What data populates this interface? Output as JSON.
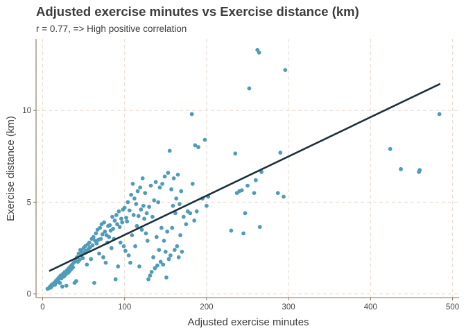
{
  "colors": {
    "point": "#4f9bb8",
    "trend_line": "#1e3039",
    "axis": "#8b7355",
    "grid": "#ecdcd0",
    "text": "#3d3d3d"
  },
  "chart_data": {
    "type": "scatter",
    "title": "Adjusted exercise minutes vs Exercise distance (km)",
    "subtitle": "r = 0.77, => High positive correlation",
    "xlabel": "Adjusted exercise minutes",
    "ylabel": "Exercise distance (km)",
    "xlim": [
      -8,
      508
    ],
    "ylim": [
      -0.2,
      13.9
    ],
    "x_ticks": [
      0,
      100,
      200,
      300,
      400,
      500
    ],
    "y_ticks": [
      0,
      5,
      10
    ],
    "grid": "dashed, major gridlines",
    "trend_line": {
      "x": [
        8,
        485
      ],
      "y": [
        1.25,
        11.45
      ]
    },
    "points": [
      [
        6,
        0.28
      ],
      [
        8,
        0.32
      ],
      [
        9,
        0.4
      ],
      [
        10,
        0.35
      ],
      [
        11,
        0.5
      ],
      [
        12,
        0.45
      ],
      [
        13,
        0.55
      ],
      [
        14,
        0.6
      ],
      [
        15,
        0.5
      ],
      [
        16,
        0.7
      ],
      [
        17,
        0.65
      ],
      [
        18,
        0.8
      ],
      [
        19,
        0.75
      ],
      [
        20,
        0.9
      ],
      [
        21,
        0.6
      ],
      [
        22,
        1.0
      ],
      [
        23,
        0.85
      ],
      [
        24,
        0.4
      ],
      [
        25,
        1.1
      ],
      [
        26,
        0.95
      ],
      [
        27,
        1.2
      ],
      [
        28,
        1.05
      ],
      [
        29,
        0.45
      ],
      [
        30,
        1.3
      ],
      [
        31,
        1.15
      ],
      [
        32,
        1.4
      ],
      [
        33,
        1.25
      ],
      [
        34,
        1.5
      ],
      [
        35,
        1.35
      ],
      [
        36,
        1.6
      ],
      [
        37,
        1.45
      ],
      [
        38,
        1.7
      ],
      [
        39,
        0.6
      ],
      [
        40,
        1.8
      ],
      [
        41,
        0.7
      ],
      [
        42,
        2.0
      ],
      [
        43,
        1.75
      ],
      [
        44,
        2.2
      ],
      [
        45,
        1.85
      ],
      [
        46,
        2.4
      ],
      [
        47,
        2.1
      ],
      [
        48,
        2.3
      ],
      [
        49,
        1.95
      ],
      [
        50,
        2.5
      ],
      [
        51,
        2.25
      ],
      [
        52,
        2.6
      ],
      [
        53,
        2.35
      ],
      [
        54,
        1.6
      ],
      [
        55,
        2.7
      ],
      [
        56,
        2.45
      ],
      [
        57,
        2.8
      ],
      [
        58,
        2.55
      ],
      [
        59,
        1.9
      ],
      [
        60,
        3.0
      ],
      [
        61,
        2.65
      ],
      [
        62,
        3.1
      ],
      [
        63,
        0.6
      ],
      [
        64,
        2.9
      ],
      [
        65,
        3.3
      ],
      [
        66,
        2.75
      ],
      [
        67,
        3.5
      ],
      [
        68,
        2.95
      ],
      [
        69,
        2.2
      ],
      [
        70,
        3.6
      ],
      [
        71,
        3.0
      ],
      [
        72,
        3.8
      ],
      [
        73,
        3.25
      ],
      [
        74,
        2.0
      ],
      [
        75,
        3.9
      ],
      [
        76,
        3.4
      ],
      [
        77,
        1.7
      ],
      [
        78,
        3.2
      ],
      [
        79,
        2.8
      ],
      [
        80,
        3.7
      ],
      [
        81,
        3.1
      ],
      [
        82,
        3.75
      ],
      [
        83,
        3.45
      ],
      [
        84,
        2.5
      ],
      [
        85,
        4.2
      ],
      [
        86,
        3.55
      ],
      [
        87,
        3.0
      ],
      [
        88,
        4.0
      ],
      [
        89,
        0.8
      ],
      [
        90,
        4.3
      ],
      [
        91,
        3.8
      ],
      [
        92,
        1.5
      ],
      [
        93,
        4.5
      ],
      [
        94,
        3.65
      ],
      [
        95,
        2.8
      ],
      [
        96,
        4.1
      ],
      [
        97,
        3.9
      ],
      [
        98,
        4.6
      ],
      [
        99,
        2.6
      ],
      [
        100,
        4.7
      ],
      [
        101,
        2.35
      ],
      [
        102,
        4.15
      ],
      [
        103,
        3.95
      ],
      [
        104,
        5.0
      ],
      [
        105,
        2.1
      ],
      [
        106,
        4.55
      ],
      [
        107,
        1.7
      ],
      [
        108,
        5.4
      ],
      [
        109,
        3.2
      ],
      [
        110,
        6.0
      ],
      [
        111,
        4.3
      ],
      [
        112,
        5.2
      ],
      [
        113,
        2.6
      ],
      [
        114,
        4.9
      ],
      [
        115,
        3.7
      ],
      [
        116,
        5.6
      ],
      [
        117,
        4.25
      ],
      [
        118,
        1.5
      ],
      [
        119,
        5.8
      ],
      [
        120,
        4.6
      ],
      [
        121,
        3.5
      ],
      [
        122,
        6.3
      ],
      [
        123,
        4.8
      ],
      [
        124,
        4.1
      ],
      [
        125,
        5.5
      ],
      [
        126,
        3.3
      ],
      [
        127,
        4.4
      ],
      [
        128,
        2.9
      ],
      [
        129,
        0.8
      ],
      [
        130,
        4.75
      ],
      [
        131,
        1.0
      ],
      [
        132,
        5.9
      ],
      [
        133,
        1.2
      ],
      [
        134,
        4.2
      ],
      [
        135,
        2.0
      ],
      [
        136,
        5.1
      ],
      [
        137,
        1.4
      ],
      [
        138,
        6.1
      ],
      [
        139,
        3.1
      ],
      [
        140,
        1.55
      ],
      [
        141,
        5.0
      ],
      [
        142,
        2.4
      ],
      [
        143,
        5.8
      ],
      [
        144,
        1.75
      ],
      [
        145,
        3.6
      ],
      [
        146,
        6.0
      ],
      [
        147,
        1.6
      ],
      [
        148,
        2.9
      ],
      [
        149,
        6.4
      ],
      [
        150,
        2.3
      ],
      [
        151,
        0.9
      ],
      [
        152,
        3.4
      ],
      [
        153,
        6.6
      ],
      [
        154,
        1.9
      ],
      [
        155,
        7.8
      ],
      [
        156,
        2.1
      ],
      [
        157,
        5.7
      ],
      [
        158,
        3.6
      ],
      [
        159,
        4.8
      ],
      [
        160,
        6.3
      ],
      [
        161,
        2.4
      ],
      [
        162,
        4.4
      ],
      [
        163,
        5.2
      ],
      [
        164,
        2.6
      ],
      [
        165,
        6.5
      ],
      [
        166,
        2.0
      ],
      [
        167,
        4.9
      ],
      [
        168,
        3.2
      ],
      [
        169,
        5.6
      ],
      [
        170,
        2.3
      ],
      [
        172,
        4.2
      ],
      [
        175,
        3.8
      ],
      [
        177,
        4.5
      ],
      [
        180,
        4.4
      ],
      [
        182,
        9.8
      ],
      [
        183,
        6.0
      ],
      [
        185,
        4.0
      ],
      [
        186,
        8.1
      ],
      [
        188,
        4.5
      ],
      [
        190,
        8.0
      ],
      [
        195,
        5.2
      ],
      [
        198,
        8.4
      ],
      [
        200,
        4.8
      ],
      [
        202,
        5.3
      ],
      [
        230,
        3.45
      ],
      [
        235,
        7.65
      ],
      [
        237,
        5.5
      ],
      [
        240,
        5.6
      ],
      [
        243,
        5.65
      ],
      [
        245,
        3.3
      ],
      [
        247,
        4.4
      ],
      [
        250,
        5.9
      ],
      [
        252,
        11.2
      ],
      [
        258,
        5.5
      ],
      [
        260,
        6.2
      ],
      [
        262,
        13.3
      ],
      [
        264,
        13.15
      ],
      [
        265,
        3.65
      ],
      [
        267,
        6.65
      ],
      [
        287,
        5.5
      ],
      [
        290,
        7.7
      ],
      [
        294,
        5.3
      ],
      [
        296,
        12.2
      ],
      [
        424,
        7.9
      ],
      [
        437,
        6.8
      ],
      [
        459,
        6.65
      ],
      [
        460,
        6.75
      ],
      [
        484,
        9.8
      ]
    ]
  }
}
